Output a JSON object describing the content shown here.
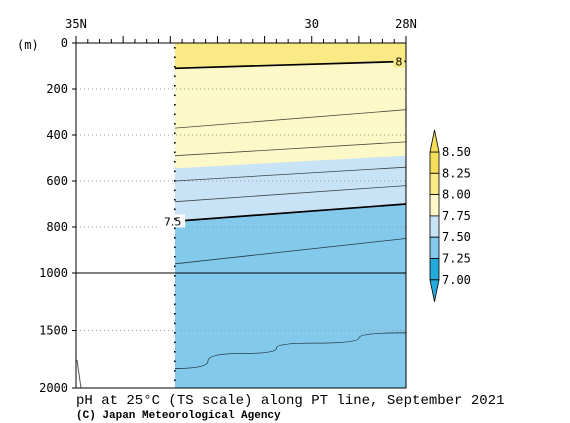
{
  "chart_data": {
    "type": "section-contour",
    "title": "pH at 25°C (TS scale) along PT line, September 2021",
    "credit": "(C) Japan Meteorological Agency",
    "x_axis": {
      "unit": "degrees north latitude",
      "range": [
        35,
        28
      ],
      "tick_labels": [
        "35N",
        "30",
        "28N"
      ],
      "tick_values": [
        35,
        30,
        28
      ],
      "minor_tick_step": 0.25
    },
    "y_axis": {
      "label": "(m)",
      "range": [
        0,
        2000
      ],
      "scale": "piecewise-linear (0-1000 m stretched, 1000-2000 m compressed)",
      "tick_labels": [
        "0",
        "200",
        "400",
        "600",
        "800",
        "1000",
        "1500",
        "2000"
      ],
      "tick_values": [
        0,
        200,
        400,
        600,
        800,
        1000,
        1500,
        2000
      ],
      "grid": "dotted"
    },
    "no_data_region": {
      "lat_from": 35,
      "lat_to": 32.9
    },
    "data_start_lat": 32.9,
    "colorbar": {
      "levels": [
        "8.50",
        "8.25",
        "8.00",
        "7.75",
        "7.50",
        "7.25",
        "7.00"
      ],
      "level_values": [
        8.5,
        8.25,
        8.0,
        7.75,
        7.5,
        7.25,
        7.0
      ],
      "bins": [
        {
          "range": [
            8.25,
            8.5
          ],
          "color": "#f5df5a"
        },
        {
          "range": [
            8.0,
            8.25
          ],
          "color": "#faea85"
        },
        {
          "range": [
            7.75,
            8.0
          ],
          "color": "#fdf8c8"
        },
        {
          "range": [
            7.5,
            7.75
          ],
          "color": "#c7e3f5"
        },
        {
          "range": [
            7.25,
            7.5
          ],
          "color": "#82c9ec"
        },
        {
          "range": [
            7.0,
            7.25
          ],
          "color": "#22aadd"
        }
      ],
      "extends": [
        "top",
        "bottom"
      ]
    },
    "fill_layers": [
      {
        "color": "#faea85",
        "bottom": [
          {
            "lat": 32.9,
            "depth": 110
          },
          {
            "lat": 28,
            "depth": 80
          }
        ]
      },
      {
        "color": "#fdf8c8",
        "bottom": [
          {
            "lat": 32.9,
            "depth": 545
          },
          {
            "lat": 28,
            "depth": 490
          }
        ]
      },
      {
        "color": "#c7e3f5",
        "bottom": [
          {
            "lat": 32.9,
            "depth": 775
          },
          {
            "lat": 28,
            "depth": 700
          }
        ]
      },
      {
        "color": "#82c9ec",
        "bottom": [
          {
            "lat": 32.9,
            "depth": 2000
          },
          {
            "lat": 28,
            "depth": 2000
          }
        ]
      }
    ],
    "contours": [
      {
        "value": 8.0,
        "bold": true,
        "label": "8",
        "label_lat": 28.15,
        "points": [
          {
            "lat": 32.9,
            "depth": 110
          },
          {
            "lat": 28,
            "depth": 80
          }
        ]
      },
      {
        "bold": false,
        "points": [
          {
            "lat": 32.9,
            "depth": 370
          },
          {
            "lat": 28,
            "depth": 290
          }
        ]
      },
      {
        "bold": false,
        "points": [
          {
            "lat": 32.9,
            "depth": 490
          },
          {
            "lat": 28,
            "depth": 430
          }
        ]
      },
      {
        "bold": false,
        "points": [
          {
            "lat": 32.9,
            "depth": 600
          },
          {
            "lat": 28,
            "depth": 540
          }
        ]
      },
      {
        "bold": false,
        "points": [
          {
            "lat": 32.9,
            "depth": 690
          },
          {
            "lat": 28,
            "depth": 620
          }
        ]
      },
      {
        "value": 7.5,
        "bold": true,
        "label": "7.5",
        "label_lat": 32.95,
        "points": [
          {
            "lat": 32.9,
            "depth": 775
          },
          {
            "lat": 28,
            "depth": 700
          }
        ]
      },
      {
        "bold": false,
        "points": [
          {
            "lat": 32.9,
            "depth": 960
          },
          {
            "lat": 28,
            "depth": 850
          }
        ]
      },
      {
        "bold": false,
        "points": [
          {
            "lat": 32.9,
            "depth": 1830
          },
          {
            "lat": 31.5,
            "depth": 1700
          },
          {
            "lat": 30,
            "depth": 1610
          },
          {
            "lat": 28,
            "depth": 1520
          }
        ]
      }
    ]
  }
}
